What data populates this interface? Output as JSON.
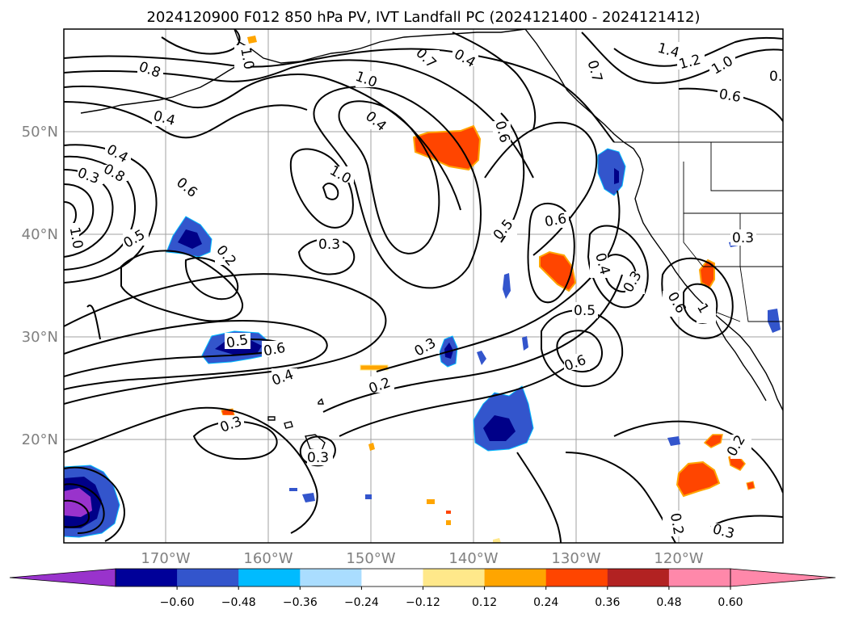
{
  "title": "2024120900 F012 850 hPa PV, IVT Landfall PC (2024121400 - 2024121412)",
  "lat_labels": [
    "50°N",
    "40°N",
    "30°N",
    "20°N"
  ],
  "lon_labels": [
    "170°W",
    "160°W",
    "150°W",
    "140°W",
    "130°W",
    "120°W"
  ],
  "contour_labels": [
    "0.8",
    "0.4",
    "1.0",
    "0.7",
    "0.4",
    "1.0",
    "0.7",
    "1.4",
    "1.2",
    "1.0",
    "0.6",
    "0.4",
    "0.6",
    "0.4",
    "0.8",
    "1.0",
    "0.3",
    "0.6",
    "0.5",
    "0.5",
    "1.0",
    "0.3",
    "0.2",
    "0.4",
    "0.3",
    "0.6",
    "0.5",
    "0.6",
    "0.4",
    "0.3",
    "0.2",
    "0.5",
    "0.6",
    "0.3",
    "0.3",
    "0.3",
    "0.2",
    "0.2",
    "0.3",
    "0.6",
    "1"
  ],
  "colorbar": {
    "ticks": [
      "−0.60",
      "−0.48",
      "−0.36",
      "−0.24",
      "−0.12",
      "0.12",
      "0.24",
      "0.36",
      "0.48",
      "0.60"
    ],
    "colors": [
      "#9933cc",
      "#000099",
      "#3355cc",
      "#00bbff",
      "#aaddff",
      "#ffffff",
      "#ffe88a",
      "#ffa500",
      "#ff4500",
      "#b22222",
      "#ff88aa",
      "#ff88aa"
    ]
  },
  "fill_colors": {
    "purple": "#9933cc",
    "navy": "#000088",
    "blue": "#3355cc",
    "cyan": "#00bbff",
    "lightblue": "#aaddff",
    "yellow": "#ffe88a",
    "orange": "#ffa500",
    "redorange": "#ff4500",
    "red": "#b22222"
  }
}
